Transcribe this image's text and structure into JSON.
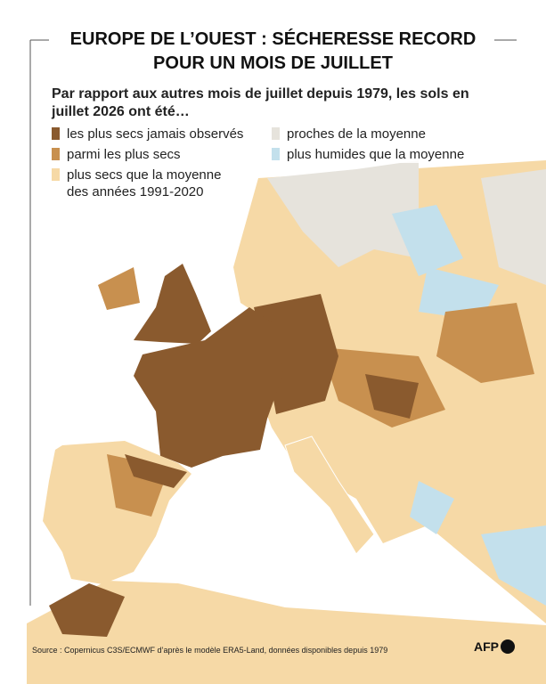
{
  "header": {
    "title": [
      "EUROPE DE L’OUEST : SÉCHERESSE RECORD",
      "POUR UN MOIS DE JUILLET"
    ],
    "subtitle": "Par rapport aux autres mois de juillet depuis 1979, les sols en juillet 2026 ont été…"
  },
  "legend": [
    {
      "label": "les plus secs jamais observés",
      "color": "#8a5a2e"
    },
    {
      "label": "parmi les plus secs",
      "color": "#c8904f"
    },
    {
      "label": "plus secs que la moyenne des années 1991-2020",
      "color": "#f6d9a6"
    },
    {
      "label": "proches de la moyenne",
      "color": "#e6e3dc"
    },
    {
      "label": "plus humides que la moyenne",
      "color": "#c3e0ec"
    }
  ],
  "footer": {
    "source": "Source : Copernicus C3S/ECMWF d’après le modèle ERA5-Land, données disponibles depuis 1979",
    "logo": "AFP"
  }
}
